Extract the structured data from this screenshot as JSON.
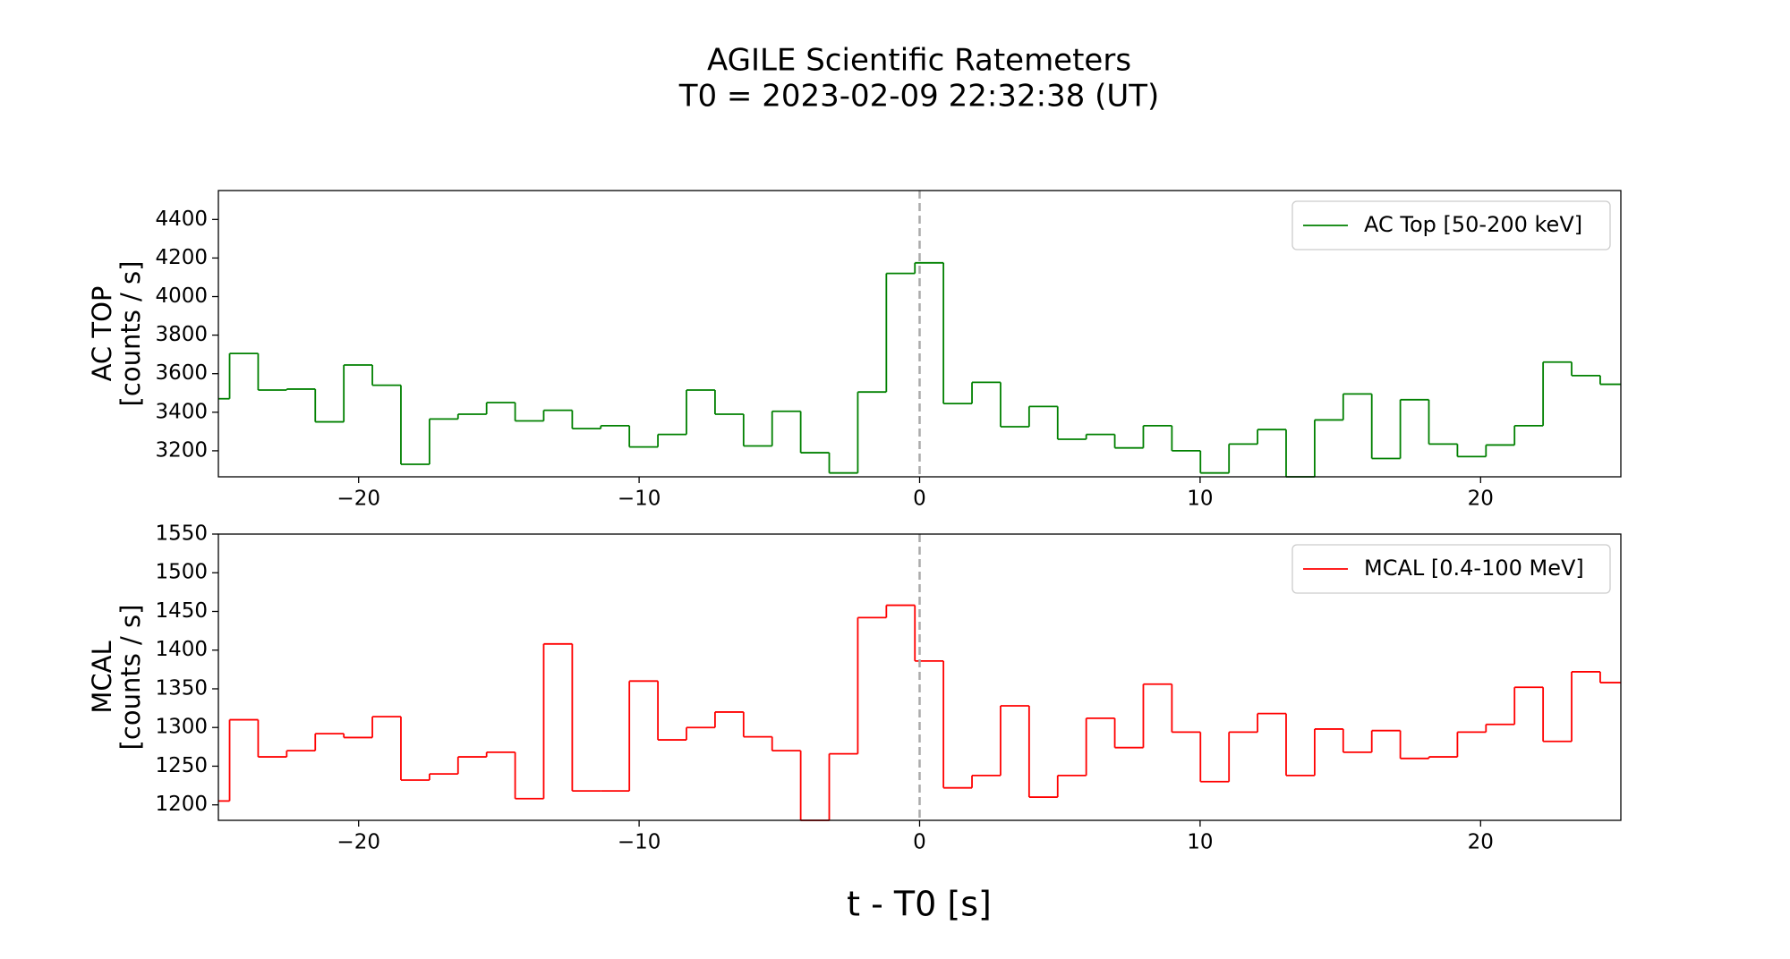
{
  "title": "AGILE Scientific Ratemeters",
  "subtitle": "T0 = 2023-02-09 22:32:38 (UT)",
  "xlabel": "t - T0 [s]",
  "chart_data": [
    {
      "type": "step",
      "ylabel": [
        "AC TOP",
        "[counts / s]"
      ],
      "xlim": [
        -25,
        25
      ],
      "xticks": [
        {
          "value": -20,
          "label": "−20"
        },
        {
          "value": -10,
          "label": "−10"
        },
        0,
        10,
        20
      ],
      "ylim": [
        3065,
        4550
      ],
      "yticks": [
        3200,
        3400,
        3600,
        3800,
        4000,
        4200,
        4400
      ],
      "vline": 0,
      "legend": "upper right",
      "series": [
        {
          "name": "AC Top [50-200 keV]",
          "color": "#008000",
          "bins": [
            -25,
            -24.6,
            -23.582,
            -22.564,
            -21.546,
            -20.528,
            -19.51,
            -18.492,
            -17.474,
            -16.456,
            -15.438,
            -14.42,
            -13.402,
            -12.384,
            -11.366,
            -10.348,
            -9.33,
            -8.312,
            -7.294,
            -6.276,
            -5.258,
            -4.24,
            -3.222,
            -2.204,
            -1.186,
            -0.168,
            0.85,
            1.868,
            2.886,
            3.904,
            4.922,
            5.94,
            6.958,
            7.976,
            8.994,
            10.012,
            11.03,
            12.048,
            13.066,
            14.084,
            15.102,
            16.12,
            17.138,
            18.156,
            19.174,
            20.192,
            21.21,
            22.228,
            23.246,
            24.264,
            25
          ],
          "values": [
            3470,
            3705,
            3515,
            3520,
            3350,
            3645,
            3540,
            3130,
            3365,
            3390,
            3450,
            3355,
            3410,
            3315,
            3330,
            3220,
            3285,
            3515,
            3390,
            3225,
            3405,
            3190,
            3085,
            3505,
            4120,
            4175,
            3445,
            3555,
            3325,
            3430,
            3260,
            3285,
            3215,
            3330,
            3200,
            3085,
            3235,
            3310,
            3065,
            3360,
            3495,
            3160,
            3465,
            3235,
            3170,
            3230,
            3330,
            3660,
            3590,
            3545
          ]
        }
      ]
    },
    {
      "type": "step",
      "ylabel": [
        "MCAL",
        "[counts / s]"
      ],
      "xlim": [
        -25,
        25
      ],
      "xticks": [
        {
          "value": -20,
          "label": "−20"
        },
        {
          "value": -10,
          "label": "−10"
        },
        0,
        10,
        20
      ],
      "ylim": [
        1180,
        1550
      ],
      "yticks": [
        1200,
        1250,
        1300,
        1350,
        1400,
        1450,
        1500,
        1550
      ],
      "vline": 0,
      "legend": "upper right",
      "series": [
        {
          "name": "MCAL [0.4-100 MeV]",
          "color": "#ff0000",
          "bins": [
            -25,
            -24.6,
            -23.582,
            -22.564,
            -21.546,
            -20.528,
            -19.51,
            -18.492,
            -17.474,
            -16.456,
            -15.438,
            -14.42,
            -13.402,
            -12.384,
            -11.366,
            -10.348,
            -9.33,
            -8.312,
            -7.294,
            -6.276,
            -5.258,
            -4.24,
            -3.222,
            -2.204,
            -1.186,
            -0.168,
            0.85,
            1.868,
            2.886,
            3.904,
            4.922,
            5.94,
            6.958,
            7.976,
            8.994,
            10.012,
            11.03,
            12.048,
            13.066,
            14.084,
            15.102,
            16.12,
            17.138,
            18.156,
            19.174,
            20.192,
            21.21,
            22.228,
            23.246,
            24.264,
            25
          ],
          "values": [
            1205,
            1310,
            1262,
            1270,
            1292,
            1287,
            1314,
            1232,
            1240,
            1262,
            1268,
            1208,
            1408,
            1218,
            1218,
            1360,
            1284,
            1300,
            1320,
            1288,
            1270,
            1180,
            1266,
            1442,
            1458,
            1386,
            1222,
            1238,
            1328,
            1210,
            1238,
            1312,
            1274,
            1356,
            1294,
            1230,
            1294,
            1318,
            1238,
            1298,
            1268,
            1296,
            1260,
            1262,
            1294,
            1304,
            1352,
            1282,
            1372,
            1358
          ]
        }
      ]
    }
  ]
}
